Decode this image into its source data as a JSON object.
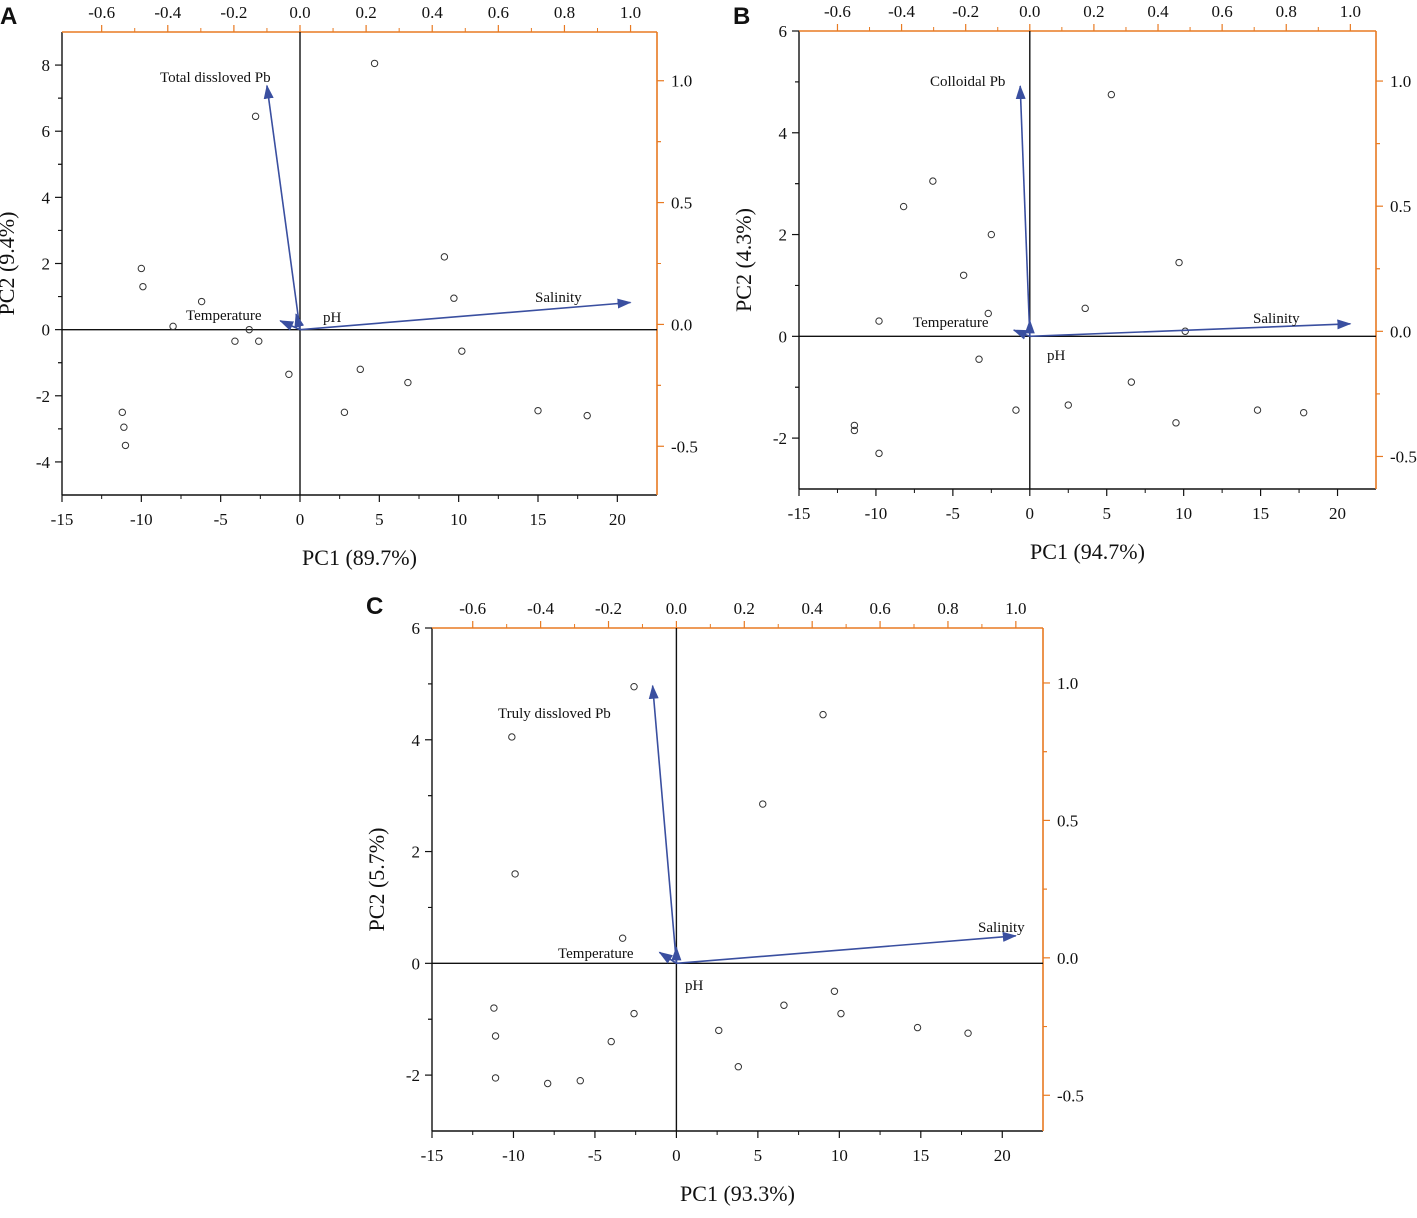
{
  "chart_data": [
    {
      "panel": "A",
      "type": "scatter",
      "xlabel": "PC1 (89.7%)",
      "ylabel": "PC2 (9.4%)",
      "xlim": [
        -15,
        22.5
      ],
      "ylim": [
        -5,
        9
      ],
      "xticks": [
        -15,
        -10,
        -5,
        0,
        5,
        10,
        15,
        20
      ],
      "yticks": [
        -4,
        -2,
        0,
        2,
        4,
        6,
        8
      ],
      "loading_xlim": [
        -0.72,
        1.08
      ],
      "loading_ylim": [
        -0.7,
        1.2
      ],
      "loading_xticks": [
        -0.6,
        -0.4,
        -0.2,
        0.0,
        0.2,
        0.4,
        0.6,
        0.8,
        1.0
      ],
      "loading_yticks": [
        -0.5,
        0.0,
        0.5,
        1.0
      ],
      "points": [
        [
          4.7,
          8.05
        ],
        [
          -2.8,
          6.45
        ],
        [
          -10.0,
          1.85
        ],
        [
          -9.9,
          1.3
        ],
        [
          -6.2,
          0.85
        ],
        [
          -8.0,
          0.1
        ],
        [
          -3.2,
          0.0
        ],
        [
          -4.1,
          -0.35
        ],
        [
          -2.6,
          -0.35
        ],
        [
          -0.7,
          -1.35
        ],
        [
          9.1,
          2.2
        ],
        [
          9.7,
          0.95
        ],
        [
          10.2,
          -0.65
        ],
        [
          3.8,
          -1.2
        ],
        [
          6.8,
          -1.6
        ],
        [
          2.8,
          -2.5
        ],
        [
          -11.2,
          -2.5
        ],
        [
          -11.1,
          -2.95
        ],
        [
          -11.0,
          -3.5
        ],
        [
          15.0,
          -2.45
        ],
        [
          18.1,
          -2.6
        ]
      ],
      "loadings": [
        {
          "label": "Total dissloved Pb",
          "x": -0.1,
          "y": 0.98
        },
        {
          "label": "Temperature",
          "x": -0.06,
          "y": 0.015
        },
        {
          "label": "pH",
          "x": -0.005,
          "y": 0.005
        },
        {
          "label": "Salinity",
          "x": 1.0,
          "y": 0.09
        }
      ],
      "colors": {
        "arrow": "#3a4fa0",
        "secondary_axis": "#e87a22"
      }
    },
    {
      "panel": "B",
      "type": "scatter",
      "xlabel": "PC1 (94.7%)",
      "ylabel": "PC2 (4.3%)",
      "xlim": [
        -15,
        22.5
      ],
      "ylim": [
        -3,
        6
      ],
      "xticks": [
        -15,
        -10,
        -5,
        0,
        5,
        10,
        15,
        20
      ],
      "yticks": [
        -2,
        0,
        2,
        4,
        6
      ],
      "loading_xlim": [
        -0.72,
        1.08
      ],
      "loading_ylim": [
        -0.63,
        1.2
      ],
      "loading_xticks": [
        -0.6,
        -0.4,
        -0.2,
        0.0,
        0.2,
        0.4,
        0.6,
        0.8,
        1.0
      ],
      "loading_yticks": [
        -0.5,
        0.0,
        0.5,
        1.0
      ],
      "points": [
        [
          5.3,
          4.75
        ],
        [
          -6.3,
          3.05
        ],
        [
          -8.2,
          2.55
        ],
        [
          -2.5,
          2.0
        ],
        [
          -4.3,
          1.2
        ],
        [
          -9.8,
          0.3
        ],
        [
          -2.7,
          0.45
        ],
        [
          -3.3,
          -0.45
        ],
        [
          3.6,
          0.55
        ],
        [
          9.7,
          1.45
        ],
        [
          10.1,
          0.1
        ],
        [
          6.6,
          -0.9
        ],
        [
          2.5,
          -1.35
        ],
        [
          -0.9,
          -1.45
        ],
        [
          9.5,
          -1.7
        ],
        [
          14.8,
          -1.45
        ],
        [
          17.8,
          -1.5
        ],
        [
          -11.4,
          -1.75
        ],
        [
          -11.4,
          -1.85
        ],
        [
          -9.8,
          -2.3
        ]
      ],
      "loadings": [
        {
          "label": "Colloidal Pb",
          "x": -0.03,
          "y": 0.98
        },
        {
          "label": "Temperature",
          "x": -0.05,
          "y": 0.005
        },
        {
          "label": "pH",
          "x": 0.0,
          "y": -0.01
        },
        {
          "label": "Salinity",
          "x": 1.0,
          "y": 0.03
        }
      ],
      "colors": {
        "arrow": "#3a4fa0",
        "secondary_axis": "#e87a22"
      }
    },
    {
      "panel": "C",
      "type": "scatter",
      "xlabel": "PC1 (93.3%)",
      "ylabel": "PC2 (5.7%)",
      "xlim": [
        -15,
        22.5
      ],
      "ylim": [
        -3,
        6
      ],
      "xticks": [
        -15,
        -10,
        -5,
        0,
        5,
        10,
        15,
        20
      ],
      "yticks": [
        -2,
        0,
        2,
        4,
        6
      ],
      "loading_xlim": [
        -0.72,
        1.08
      ],
      "loading_ylim": [
        -0.63,
        1.2
      ],
      "loading_xticks": [
        -0.6,
        -0.4,
        -0.2,
        0.0,
        0.2,
        0.4,
        0.6,
        0.8,
        1.0
      ],
      "loading_yticks": [
        -0.5,
        0.0,
        0.5,
        1.0
      ],
      "points": [
        [
          -2.6,
          4.95
        ],
        [
          9.0,
          4.45
        ],
        [
          -10.1,
          4.05
        ],
        [
          5.3,
          2.85
        ],
        [
          -9.9,
          1.6
        ],
        [
          -3.3,
          0.45
        ],
        [
          -11.2,
          -0.8
        ],
        [
          -11.1,
          -1.3
        ],
        [
          -2.6,
          -0.9
        ],
        [
          -4.0,
          -1.4
        ],
        [
          -11.1,
          -2.05
        ],
        [
          -7.9,
          -2.15
        ],
        [
          -5.9,
          -2.1
        ],
        [
          2.6,
          -1.2
        ],
        [
          3.8,
          -1.85
        ],
        [
          6.6,
          -0.75
        ],
        [
          9.7,
          -0.5
        ],
        [
          10.1,
          -0.9
        ],
        [
          14.8,
          -1.15
        ],
        [
          17.9,
          -1.25
        ]
      ],
      "loadings": [
        {
          "label": "Truly dissloved Pb",
          "x": -0.07,
          "y": 0.99
        },
        {
          "label": "Temperature",
          "x": -0.05,
          "y": 0.02
        },
        {
          "label": "pH",
          "x": 0.0,
          "y": -0.005
        },
        {
          "label": "Salinity",
          "x": 1.0,
          "y": 0.08
        }
      ],
      "colors": {
        "arrow": "#3a4fa0",
        "secondary_axis": "#e87a22"
      }
    }
  ]
}
